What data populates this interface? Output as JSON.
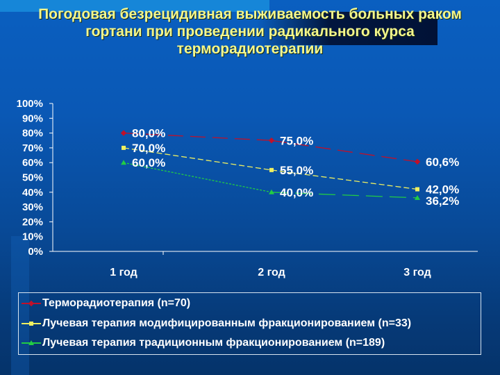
{
  "title": {
    "lines": [
      "Погодовая безрецидивная выживаемость больных раком",
      "гортани при проведении радикального курса",
      "терморадиотерапии"
    ]
  },
  "chart_data": {
    "type": "line",
    "title": "Погодовая безрецидивная выживаемость больных раком гортани при проведении радикального курса терморадиотерапии",
    "categories": [
      "1 год",
      "2 год",
      "3 год"
    ],
    "xlabel": "",
    "ylabel": "",
    "ylim": [
      0,
      100
    ],
    "yticks": [
      "100%",
      "90%",
      "80%",
      "70%",
      "60%",
      "50%",
      "40%",
      "30%",
      "20%",
      "10%",
      "0%"
    ],
    "grid": false,
    "legend_position": "bottom",
    "series": [
      {
        "name": "Терморадиотерапия (n=70)",
        "color": "#c0112a",
        "marker": "diamond",
        "values": [
          80.0,
          75.0,
          60.6
        ],
        "labels": [
          "80,0%",
          "75,0%",
          "60,6%"
        ]
      },
      {
        "name": "Лучевая терапия модифицированным фракционированием (n=33)",
        "color": "#f0f060",
        "marker": "square",
        "values": [
          70.0,
          55.0,
          42.0
        ],
        "labels": [
          "70,0%",
          "55,0%",
          "42,0%"
        ]
      },
      {
        "name": "Лучевая терапия традиционным фракционированием (n=189)",
        "color": "#22cc44",
        "marker": "triangle",
        "values": [
          60.0,
          40.0,
          36.2
        ],
        "labels": [
          "60,0%",
          "40,0%",
          "36,2%"
        ]
      }
    ]
  }
}
